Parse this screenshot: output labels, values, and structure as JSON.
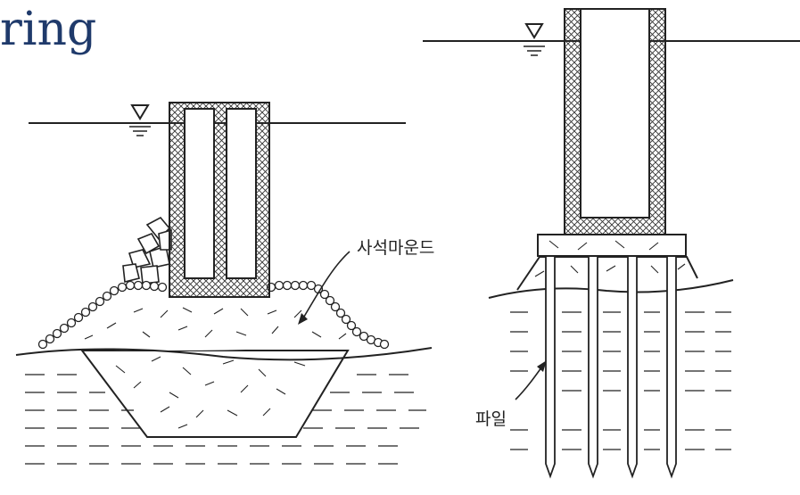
{
  "page": {
    "title_fragment": "ring"
  },
  "left_figure": {
    "label_mound": "사석마운드"
  },
  "right_figure": {
    "label_pile": "파일"
  },
  "colors": {
    "title": "#1f3a6b",
    "line": "#222222"
  }
}
